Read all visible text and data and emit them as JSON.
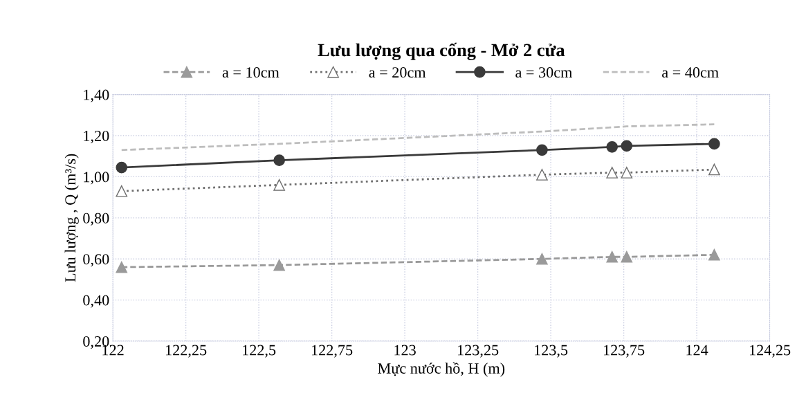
{
  "chart_data": {
    "type": "line",
    "title": "Lưu lượng qua cống - Mở 2 cửa",
    "xlabel": "Mực nước hồ, H (m)",
    "ylabel": "Lưu lượng , Q (m³/s)",
    "x": [
      122.03,
      122.57,
      123.47,
      123.71,
      123.76,
      124.06
    ],
    "series": [
      {
        "name": "a = 10cm",
        "color": "#9a9a9a",
        "marker": "triangle",
        "line_style": "dashed",
        "values": [
          0.56,
          0.57,
          0.6,
          0.61,
          0.61,
          0.62
        ]
      },
      {
        "name": "a = 20cm",
        "color": "#6e6e6e",
        "marker": "triangle",
        "line_style": "dotted",
        "values": [
          0.93,
          0.96,
          1.01,
          1.02,
          1.02,
          1.035
        ]
      },
      {
        "name": "a = 30cm",
        "color": "#3a3a3a",
        "marker": "circle",
        "line_style": "solid",
        "values": [
          1.045,
          1.08,
          1.13,
          1.145,
          1.15,
          1.16
        ]
      },
      {
        "name": "a = 40cm",
        "color": "#bdbdbd",
        "marker": "none",
        "line_style": "dashed",
        "values": [
          1.13,
          1.16,
          1.22,
          1.24,
          1.245,
          1.255
        ]
      }
    ],
    "xlim": [
      122,
      124.25
    ],
    "ylim": [
      0.2,
      1.4
    ],
    "xticks": [
      122,
      {
        "value": 122.25,
        "label": "122,25"
      },
      {
        "value": 122.5,
        "label": "122,5"
      },
      {
        "value": 122.75,
        "label": "122,75"
      },
      123,
      {
        "value": 123.25,
        "label": "123,25"
      },
      {
        "value": 123.5,
        "label": "123,5"
      },
      {
        "value": 123.75,
        "label": "123,75"
      },
      124,
      {
        "value": 124.25,
        "label": "124,25"
      }
    ],
    "yticks": [
      {
        "value": 0.2,
        "label": "0,20"
      },
      {
        "value": 0.4,
        "label": "0,40"
      },
      {
        "value": 0.6,
        "label": "0,60"
      },
      {
        "value": 0.8,
        "label": "0,80"
      },
      {
        "value": 1.0,
        "label": "1,00"
      },
      {
        "value": 1.2,
        "label": "1,20"
      },
      {
        "value": 1.4,
        "label": "1,40"
      }
    ],
    "grid": true,
    "legend": "top"
  }
}
